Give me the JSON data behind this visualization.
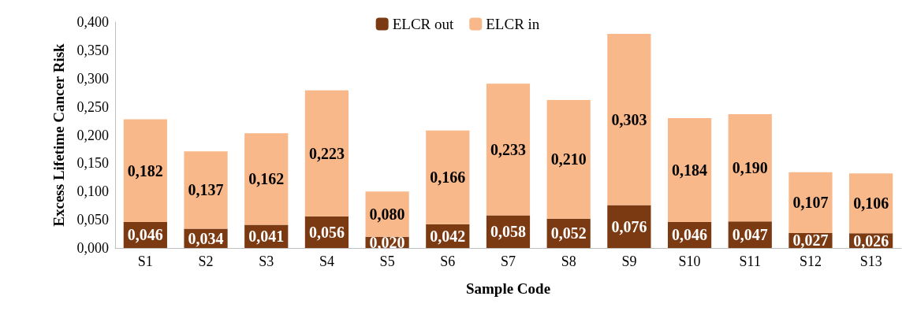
{
  "chart_data": {
    "type": "bar",
    "stacked": true,
    "xlabel": "Sample Code",
    "ylabel": "Excess Lifetime Cancer Risk",
    "categories": [
      "S1",
      "S2",
      "S3",
      "S4",
      "S5",
      "S6",
      "S7",
      "S8",
      "S9",
      "S10",
      "S11",
      "S12",
      "S13"
    ],
    "series": [
      {
        "name": "ELCR out",
        "color": "#7b3a12",
        "values": [
          0.046,
          0.034,
          0.041,
          0.056,
          0.02,
          0.042,
          0.058,
          0.052,
          0.076,
          0.046,
          0.047,
          0.027,
          0.026
        ],
        "value_labels": [
          "0,046",
          "0,034",
          "0,041",
          "0,056",
          "0,020",
          "0,042",
          "0,058",
          "0,052",
          "0,076",
          "0,046",
          "0,047",
          "0,027",
          "0,026"
        ]
      },
      {
        "name": "ELCR in",
        "color": "#f8b88a",
        "values": [
          0.182,
          0.137,
          0.162,
          0.223,
          0.08,
          0.166,
          0.233,
          0.21,
          0.303,
          0.184,
          0.19,
          0.107,
          0.106
        ],
        "value_labels": [
          "0,182",
          "0,137",
          "0,162",
          "0,223",
          "0,080",
          "0,166",
          "0,233",
          "0,210",
          "0,303",
          "0,184",
          "0,190",
          "0,107",
          "0,106"
        ]
      }
    ],
    "ylim": [
      0,
      0.4
    ],
    "yticks": [
      {
        "value": 0,
        "label": "0,000"
      },
      {
        "value": 0.05,
        "label": "0,050"
      },
      {
        "value": 0.1,
        "label": "0,100"
      },
      {
        "value": 0.15,
        "label": "0,150"
      },
      {
        "value": 0.2,
        "label": "0,200"
      },
      {
        "value": 0.25,
        "label": "0,250"
      },
      {
        "value": 0.3,
        "label": "0,300"
      },
      {
        "value": 0.35,
        "label": "0,350"
      },
      {
        "value": 0.4,
        "label": "0,400"
      }
    ],
    "legend": "top"
  }
}
